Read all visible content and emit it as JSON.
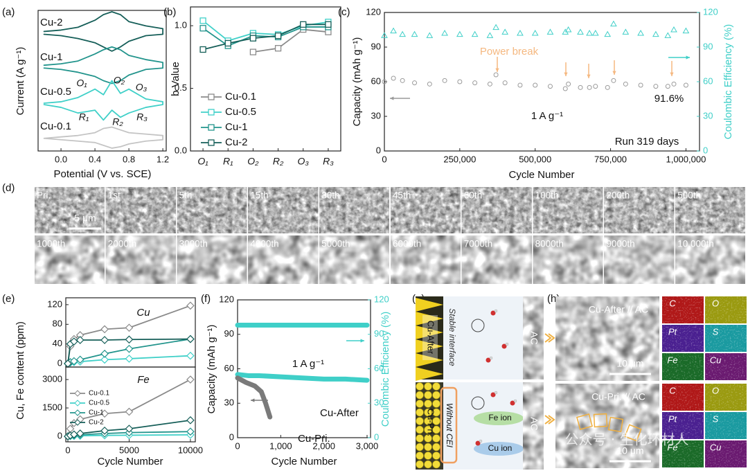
{
  "chart_data": [
    {
      "type": "line",
      "panel_label": "(a)",
      "xlabel": "Potential (V vs. SCE)",
      "ylabel": "Current (A g⁻¹)",
      "xlim": [
        -0.27,
        1.24
      ],
      "ylim": [
        0,
        10
      ],
      "xticks": [
        {
          "value": 0,
          "label": "0.0"
        },
        0.4,
        0.8,
        1.2
      ],
      "annotations": [
        "O₁",
        "O₂",
        "O₃",
        "R₁",
        "R₂",
        "R₃"
      ],
      "series": [
        {
          "name": "Cu-2",
          "color": "#155e58",
          "x": [
            -0.2,
            0.0,
            0.2,
            0.4,
            0.5,
            0.6,
            0.7,
            0.8,
            1.0,
            1.2,
            1.2,
            1.0,
            0.8,
            0.7,
            0.6,
            0.5,
            0.4,
            0.2,
            0.0,
            -0.2
          ],
          "values": [
            8.5,
            8.6,
            8.8,
            9.3,
            9.7,
            9.9,
            9.7,
            9.2,
            8.9,
            8.7,
            8.3,
            8.2,
            7.8,
            7.4,
            7.1,
            7.4,
            7.7,
            8.0,
            8.2,
            8.3
          ]
        },
        {
          "name": "Cu-1",
          "color": "#22948c",
          "x": [
            -0.2,
            0.0,
            0.2,
            0.4,
            0.5,
            0.6,
            0.7,
            0.8,
            1.0,
            1.2,
            1.2,
            1.0,
            0.8,
            0.7,
            0.6,
            0.5,
            0.4,
            0.2,
            0.0,
            -0.2
          ],
          "values": [
            6.1,
            6.2,
            6.4,
            6.9,
            7.2,
            7.4,
            7.2,
            6.8,
            6.5,
            6.3,
            5.9,
            5.8,
            5.4,
            5.0,
            4.8,
            5.0,
            5.3,
            5.6,
            5.8,
            5.9
          ]
        },
        {
          "name": "Cu-0.5",
          "color": "#3fd0c8",
          "x": [
            -0.2,
            0.0,
            0.2,
            0.4,
            0.5,
            0.6,
            0.7,
            0.8,
            1.0,
            1.2,
            1.2,
            1.0,
            0.8,
            0.7,
            0.6,
            0.5,
            0.4,
            0.2,
            0.0,
            -0.2
          ],
          "values": [
            3.4,
            3.5,
            3.8,
            4.4,
            4.0,
            5.0,
            4.1,
            4.4,
            3.7,
            3.5,
            3.3,
            3.1,
            2.7,
            2.4,
            2.9,
            2.2,
            2.9,
            2.7,
            3.1,
            3.3
          ]
        },
        {
          "name": "Cu-0.1",
          "color": "#c4c4c4",
          "x": [
            -0.2,
            0.0,
            0.2,
            0.4,
            0.5,
            0.6,
            0.7,
            0.8,
            1.0,
            1.2,
            1.2,
            1.0,
            0.8,
            0.7,
            0.6,
            0.5,
            0.4,
            0.2,
            0.0,
            -0.2
          ],
          "values": [
            0.9,
            1.0,
            1.1,
            1.3,
            1.6,
            1.7,
            1.5,
            1.3,
            1.2,
            1.1,
            0.8,
            0.7,
            0.5,
            0.3,
            0.2,
            0.4,
            0.6,
            0.7,
            0.8,
            0.9
          ]
        }
      ]
    },
    {
      "type": "line",
      "panel_label": "(b)",
      "ylabel": "b Value",
      "marker": "square",
      "legend": "lower left",
      "categories": [
        "O₁",
        "R₁",
        "O₂",
        "R₂",
        "O₃",
        "R₃"
      ],
      "ylim": [
        0,
        1.15
      ],
      "yticks": [
        {
          "value": 0,
          "label": "0.0"
        },
        0.5,
        {
          "value": 1,
          "label": "1.0"
        }
      ],
      "series": [
        {
          "name": "Cu-0.1",
          "color": "#8a8a8a",
          "values": [
            null,
            null,
            0.79,
            0.82,
            0.97,
            0.95
          ]
        },
        {
          "name": "Cu-0.5",
          "color": "#3fd0c8",
          "values": [
            1.04,
            0.88,
            0.94,
            0.93,
            1.0,
            1.03
          ]
        },
        {
          "name": "Cu-1",
          "color": "#22948c",
          "values": [
            0.98,
            0.84,
            0.92,
            0.91,
            0.99,
            0.99
          ]
        },
        {
          "name": "Cu-2",
          "color": "#155e58",
          "values": [
            0.81,
            0.86,
            0.9,
            0.92,
            1.01,
            1.01
          ]
        }
      ]
    },
    {
      "type": "scatter",
      "panel_label": "(c)",
      "xlabel": "Cycle Number",
      "ylabel": "Capacity (mAh g⁻¹)",
      "y2label": "Coulombic Efficiency (%)",
      "xlim": [
        0,
        1045000
      ],
      "ylim": [
        0,
        120
      ],
      "y2lim": [
        0,
        120
      ],
      "xticks": [
        0,
        {
          "value": 250000,
          "label": "250,000"
        },
        {
          "value": 500000,
          "label": "500,000"
        },
        {
          "value": 750000,
          "label": "750,000"
        },
        {
          "value": 1000000,
          "label": "1,000,000"
        }
      ],
      "yticks": [
        0,
        30,
        60,
        90,
        120
      ],
      "y2ticks": [
        0,
        30,
        60,
        90,
        120
      ],
      "annotations": [
        "Power break",
        "1 A g⁻¹",
        "91.6%",
        "Run 319 days"
      ],
      "x": [
        0,
        30000,
        60000,
        100000,
        150000,
        200000,
        250000,
        300000,
        350000,
        370000,
        400000,
        450000,
        500000,
        550000,
        600000,
        610000,
        650000,
        680000,
        700000,
        740000,
        760000,
        800000,
        850000,
        900000,
        940000,
        960000,
        1000000
      ],
      "series": [
        {
          "color": "#9a9a9a",
          "marker": "circle",
          "values": [
            60,
            63,
            61,
            59,
            58,
            61,
            60,
            59,
            58,
            66,
            59,
            57,
            57,
            56,
            54,
            58,
            55,
            55,
            56,
            55,
            61,
            58,
            57,
            56,
            56,
            58,
            57
          ]
        },
        {
          "color": "#3fcfc8",
          "marker": "triangle",
          "axis": "y2",
          "values": [
            100,
            104,
            101,
            101,
            100,
            102,
            101,
            101,
            100,
            107,
            103,
            102,
            102,
            103,
            103,
            105,
            103,
            102,
            102,
            101,
            110,
            103,
            102,
            101,
            100,
            105,
            104
          ]
        }
      ]
    },
    {
      "type": "line",
      "panel_label": "(e)",
      "ylabel": "Cu, Fe content (ppm)",
      "marker": "diamond",
      "xlim": [
        -170,
        10400
      ],
      "ylim": [
        -7,
        134
      ],
      "yticks": [
        0,
        40,
        80,
        120
      ],
      "annotations": [
        "Cu"
      ],
      "x": [
        0,
        200,
        500,
        1000,
        3000,
        5000,
        10000
      ],
      "series": [
        {
          "name": "Cu-0.1",
          "color": "#8a8a8a",
          "values": [
            0,
            35,
            50,
            58,
            70,
            73,
            118
          ]
        },
        {
          "name": "Cu-0.5",
          "color": "#3fd0c8",
          "values": [
            0,
            2,
            3,
            4,
            8,
            10,
            16
          ]
        },
        {
          "name": "Cu-1",
          "color": "#22948c",
          "values": [
            0,
            3,
            5,
            8,
            20,
            30,
            50
          ]
        },
        {
          "name": "Cu-2",
          "color": "#155e58",
          "values": [
            0,
            40,
            45,
            48,
            48,
            49,
            50
          ]
        }
      ]
    },
    {
      "type": "line",
      "xlabel": "Cycle Number",
      "marker": "diamond",
      "legend": "upper left",
      "xlim": [
        -170,
        10400
      ],
      "ylim": [
        -290,
        3660
      ],
      "xticks": [
        0,
        5000,
        10000
      ],
      "yticks": [
        0,
        1500,
        3000
      ],
      "annotations": [
        "Fe"
      ],
      "x": [
        0,
        200,
        500,
        1000,
        3000,
        5000,
        10000
      ],
      "series": [
        {
          "name": "Cu-0.1",
          "color": "#8a8a8a",
          "values": [
            0,
            400,
            700,
            900,
            1200,
            1300,
            3000
          ]
        },
        {
          "name": "Cu-0.5",
          "color": "#3fd0c8",
          "values": [
            0,
            10,
            20,
            30,
            50,
            60,
            80
          ]
        },
        {
          "name": "Cu-1",
          "color": "#22948c",
          "values": [
            0,
            30,
            60,
            80,
            150,
            200,
            250
          ]
        },
        {
          "name": "Cu-2",
          "color": "#155e58",
          "values": [
            0,
            50,
            100,
            150,
            300,
            400,
            850
          ]
        }
      ]
    },
    {
      "type": "line",
      "panel_label": "(f)",
      "xlabel": "Cycle Number",
      "ylabel": "Capacity (mAh g⁻¹)",
      "y2label": "Coulombic Efficiency (%)",
      "xlim": [
        0,
        3080
      ],
      "ylim": [
        0,
        120
      ],
      "y2lim": [
        0,
        120
      ],
      "xticks": [
        0,
        {
          "value": 1000,
          "label": "1,000"
        },
        {
          "value": 2000,
          "label": "2,000"
        },
        {
          "value": 3000,
          "label": "3,000"
        }
      ],
      "yticks": [
        0,
        30,
        60,
        90,
        120
      ],
      "y2ticks": [
        0,
        30,
        60,
        90,
        120
      ],
      "annotations": [
        "1 A g⁻¹"
      ],
      "series": [
        {
          "name": "Cu-After",
          "color": "#3fcfc8",
          "x": [
            0,
            250,
            500,
            1000,
            1500,
            2000,
            2500,
            3000
          ],
          "values": [
            55,
            54,
            54,
            53,
            52,
            51,
            51,
            50
          ]
        },
        {
          "name": "Cu-Pri.",
          "color": "#7a7a7a",
          "x": [
            0,
            200,
            400,
            550,
            650,
            700,
            750
          ],
          "values": [
            52,
            48,
            45,
            40,
            30,
            24,
            18
          ]
        },
        {
          "color": "#3fcfc8",
          "axis": "y2",
          "x": [
            0,
            500,
            1000,
            1500,
            2000,
            2500,
            3000
          ],
          "values": [
            98,
            98,
            98,
            98,
            98,
            98,
            98
          ]
        }
      ]
    }
  ],
  "sem": {
    "panel_label": "(d)",
    "scale_bar": "5 μm",
    "tiles": [
      "Pri.",
      "1st",
      "5th",
      "15th",
      "30th",
      "45th",
      "60th",
      "100th",
      "200th",
      "500th",
      "1000th",
      "2000th",
      "3000th",
      "4000th",
      "5000th",
      "6000th",
      "7000th",
      "8000th",
      "9000th",
      "10,000th"
    ]
  },
  "schematic": {
    "panel_label": "(g)",
    "top": {
      "electrode": "Cu-After",
      "interface": "Stable interface",
      "counter": "AC"
    },
    "bottom": {
      "electrode": "Cu-Pri.",
      "interface": "Without CEI",
      "counter": "AC",
      "ions": [
        "Fe ion",
        "Cu ion"
      ]
    }
  },
  "sem_mapping": {
    "panel_label": "(h)",
    "panels": [
      {
        "title": "Cu-After // AC",
        "scale_bar": "10 μm",
        "elements": [
          "C",
          "O",
          "Pt",
          "S",
          "Fe",
          "Cu"
        ]
      },
      {
        "title": "Cu-Pri. // AC",
        "scale_bar": "10 μm",
        "elements": [
          "C",
          "O",
          "Pt",
          "S",
          "Fe",
          "Cu"
        ]
      }
    ]
  },
  "watermark": "公众号 · 生化环材人"
}
